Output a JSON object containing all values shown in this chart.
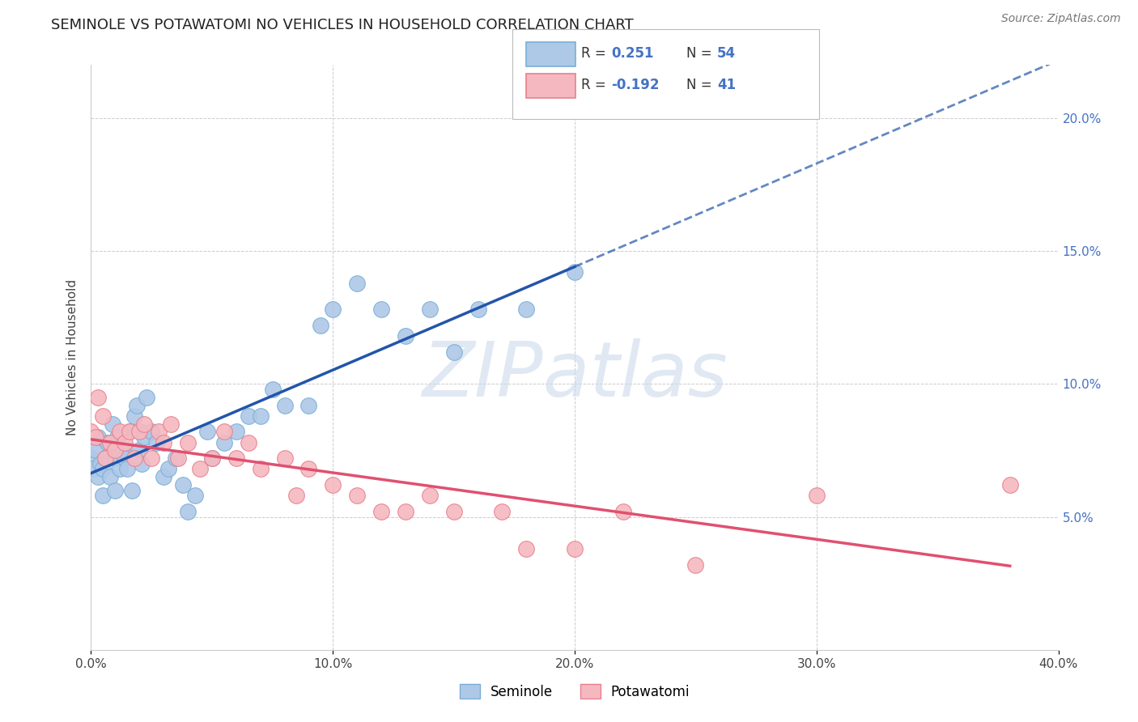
{
  "title": "SEMINOLE VS POTAWATOMI NO VEHICLES IN HOUSEHOLD CORRELATION CHART",
  "ylabel": "No Vehicles in Household",
  "source": "Source: ZipAtlas.com",
  "watermark": "ZIPatlas",
  "seminole": {
    "R": 0.251,
    "N": 54,
    "dot_color": "#aec8e8",
    "dot_edge": "#7aafd4",
    "trend_color": "#2255aa",
    "x": [
      0.0,
      0.001,
      0.002,
      0.003,
      0.003,
      0.004,
      0.005,
      0.005,
      0.006,
      0.007,
      0.008,
      0.009,
      0.01,
      0.01,
      0.011,
      0.012,
      0.013,
      0.014,
      0.015,
      0.016,
      0.017,
      0.018,
      0.019,
      0.02,
      0.021,
      0.022,
      0.023,
      0.025,
      0.027,
      0.03,
      0.032,
      0.035,
      0.038,
      0.04,
      0.043,
      0.048,
      0.05,
      0.055,
      0.06,
      0.065,
      0.07,
      0.075,
      0.08,
      0.09,
      0.095,
      0.1,
      0.11,
      0.12,
      0.13,
      0.14,
      0.15,
      0.16,
      0.18,
      0.2
    ],
    "y": [
      0.072,
      0.068,
      0.075,
      0.065,
      0.08,
      0.07,
      0.068,
      0.058,
      0.072,
      0.078,
      0.065,
      0.085,
      0.072,
      0.06,
      0.08,
      0.068,
      0.075,
      0.072,
      0.068,
      0.082,
      0.06,
      0.088,
      0.092,
      0.075,
      0.07,
      0.08,
      0.095,
      0.082,
      0.078,
      0.065,
      0.068,
      0.072,
      0.062,
      0.052,
      0.058,
      0.082,
      0.072,
      0.078,
      0.082,
      0.088,
      0.088,
      0.098,
      0.092,
      0.092,
      0.122,
      0.128,
      0.138,
      0.128,
      0.118,
      0.128,
      0.112,
      0.128,
      0.128,
      0.142
    ]
  },
  "potawatomi": {
    "R": -0.192,
    "N": 41,
    "dot_color": "#f5b8c0",
    "dot_edge": "#e8808c",
    "trend_color": "#e05070",
    "x": [
      0.0,
      0.002,
      0.003,
      0.005,
      0.006,
      0.008,
      0.01,
      0.012,
      0.014,
      0.016,
      0.018,
      0.02,
      0.022,
      0.025,
      0.028,
      0.03,
      0.033,
      0.036,
      0.04,
      0.045,
      0.05,
      0.055,
      0.06,
      0.065,
      0.07,
      0.08,
      0.085,
      0.09,
      0.1,
      0.11,
      0.12,
      0.13,
      0.14,
      0.15,
      0.17,
      0.18,
      0.2,
      0.22,
      0.25,
      0.3,
      0.38
    ],
    "y": [
      0.082,
      0.08,
      0.095,
      0.088,
      0.072,
      0.078,
      0.075,
      0.082,
      0.078,
      0.082,
      0.072,
      0.082,
      0.085,
      0.072,
      0.082,
      0.078,
      0.085,
      0.072,
      0.078,
      0.068,
      0.072,
      0.082,
      0.072,
      0.078,
      0.068,
      0.072,
      0.058,
      0.068,
      0.062,
      0.058,
      0.052,
      0.052,
      0.058,
      0.052,
      0.052,
      0.038,
      0.038,
      0.052,
      0.032,
      0.058,
      0.062
    ]
  },
  "xlim": [
    0.0,
    0.4
  ],
  "ylim": [
    0.0,
    0.22
  ],
  "xticks": [
    0.0,
    0.1,
    0.2,
    0.3,
    0.4
  ],
  "xtick_labels": [
    "0.0%",
    "10.0%",
    "20.0%",
    "30.0%",
    "40.0%"
  ],
  "yticks": [
    0.05,
    0.1,
    0.15,
    0.2
  ],
  "ytick_labels": [
    "5.0%",
    "10.0%",
    "15.0%",
    "20.0%"
  ],
  "background_color": "#ffffff",
  "grid_color": "#cccccc",
  "seminole_label": "Seminole",
  "potawatomi_label": "Potawatomi"
}
